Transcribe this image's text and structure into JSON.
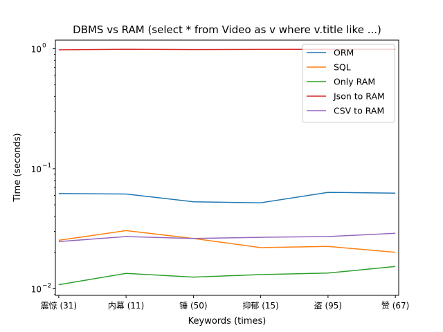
{
  "chart_data": {
    "type": "line",
    "title": "DBMS vs RAM (select * from Video as v where v.title like ...)",
    "xlabel": "Keywords (times)",
    "ylabel": "Time (seconds)",
    "yscale": "log",
    "ylim": [
      0.0088,
      1.18
    ],
    "yticks": [
      {
        "value": 1,
        "base": "10",
        "exp": "0"
      },
      {
        "value": 0.1,
        "base": "10",
        "exp": "−1"
      },
      {
        "value": 0.01,
        "base": "10",
        "exp": "−2"
      }
    ],
    "categories": [
      "震惊 (31)",
      "内幕 (11)",
      "锤 (50)",
      "抑郁 (15)",
      "盗 (95)",
      "赞 (67)"
    ],
    "grid": false,
    "legend_position": "top-right",
    "series": [
      {
        "name": "ORM",
        "color": "#1f77b4",
        "values": [
          0.062,
          0.0615,
          0.053,
          0.052,
          0.0635,
          0.0625
        ]
      },
      {
        "name": "SQL",
        "color": "#ff7f0e",
        "values": [
          0.0253,
          0.0305,
          0.0262,
          0.022,
          0.0225,
          0.0201
        ]
      },
      {
        "name": "Only RAM",
        "color": "#2ca02c",
        "values": [
          0.0108,
          0.0134,
          0.0125,
          0.0131,
          0.0135,
          0.0153
        ]
      },
      {
        "name": "Json to RAM",
        "color": "#d62728",
        "values": [
          0.98,
          0.99,
          0.985,
          0.988,
          0.99,
          0.99
        ]
      },
      {
        "name": "CSV to RAM",
        "color": "#9467bd",
        "values": [
          0.0247,
          0.0272,
          0.0262,
          0.0268,
          0.0272,
          0.029
        ]
      }
    ]
  }
}
